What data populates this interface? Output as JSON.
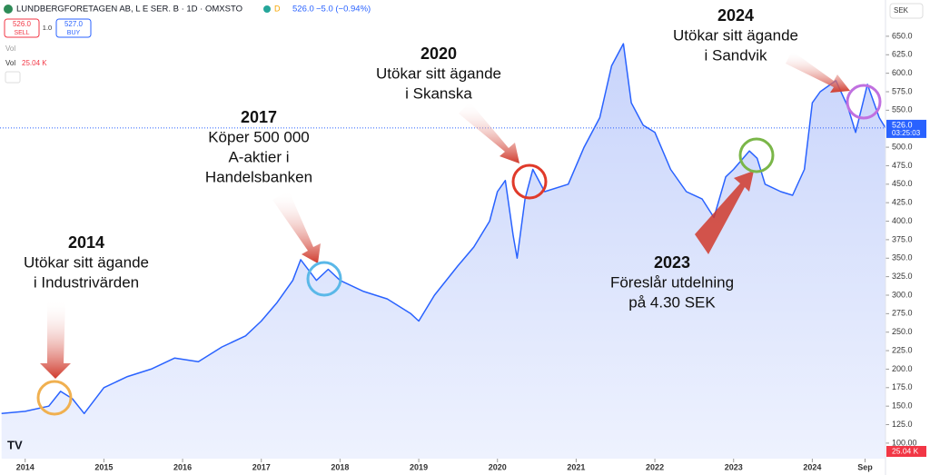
{
  "chart_data": {
    "type": "line",
    "header": {
      "title": "LUNDBERGFORETAGEN AB, L E SER. B · 1D · OMXSTO",
      "badge": "D",
      "price": "526.0",
      "change": "−5.0 (−0.94%)",
      "sell_price": "526.0",
      "sell_label": "SELL",
      "spread": "1.0",
      "buy_price": "527.0",
      "buy_label": "BUY",
      "vol_label": "Vol",
      "vol_title": "Vol",
      "vol_value": "25.04 K"
    },
    "currency": "SEK",
    "price_tag": "526.0",
    "time_tag": "03:25:03",
    "volume_tag": "25.04 K",
    "last_price": 526,
    "xlim": [
      2013.68,
      2024.93
    ],
    "xticks": [
      2014,
      2015,
      2016,
      2017,
      2018,
      2019,
      2020,
      2021,
      2022,
      2023,
      2024,
      {
        "value": 2024.67,
        "label": "Sep"
      }
    ],
    "ylim": [
      79,
      699
    ],
    "yticks": [
      {
        "value": 125,
        "label": "125.0"
      },
      {
        "value": 150,
        "label": "150.0"
      },
      {
        "value": 175,
        "label": "175.0"
      },
      {
        "value": 200,
        "label": "200.0"
      },
      {
        "value": 225,
        "label": "225.0"
      },
      {
        "value": 250,
        "label": "250.0"
      },
      {
        "value": 275,
        "label": "275.0"
      },
      {
        "value": 300,
        "label": "300.0"
      },
      {
        "value": 325,
        "label": "325.0"
      },
      {
        "value": 350,
        "label": "350.0"
      },
      {
        "value": 375,
        "label": "375.0"
      },
      {
        "value": 400,
        "label": "400.0"
      },
      {
        "value": 425,
        "label": "425.0"
      },
      {
        "value": 450,
        "label": "450.0"
      },
      {
        "value": 475,
        "label": "475.0"
      },
      {
        "value": 500,
        "label": "500.0"
      },
      {
        "value": 550,
        "label": "550.0"
      },
      {
        "value": 575,
        "label": "575.0"
      },
      {
        "value": 600,
        "label": "600.0"
      },
      {
        "value": 625,
        "label": "625.0"
      },
      {
        "value": 650,
        "label": "650.0"
      },
      {
        "value": 100,
        "label": "100.00"
      }
    ],
    "series": [
      {
        "color": "#2962ff",
        "x": [
          2013.7,
          2014.0,
          2014.3,
          2014.45,
          2014.6,
          2014.75,
          2015.0,
          2015.3,
          2015.6,
          2015.9,
          2016.2,
          2016.5,
          2016.8,
          2017.0,
          2017.2,
          2017.4,
          2017.5,
          2017.7,
          2017.85,
          2018.0,
          2018.3,
          2018.6,
          2018.9,
          2019.0,
          2019.2,
          2019.5,
          2019.7,
          2019.9,
          2020.0,
          2020.1,
          2020.2,
          2020.25,
          2020.35,
          2020.45,
          2020.6,
          2020.9,
          2021.1,
          2021.3,
          2021.45,
          2021.6,
          2021.7,
          2021.85,
          2022.0,
          2022.2,
          2022.4,
          2022.6,
          2022.75,
          2022.9,
          2023.0,
          2023.2,
          2023.3,
          2023.4,
          2023.6,
          2023.75,
          2023.9,
          2024.0,
          2024.1,
          2024.3,
          2024.45,
          2024.55,
          2024.7,
          2024.85,
          2024.93
        ],
        "values": [
          140,
          143,
          150,
          170,
          160,
          140,
          175,
          190,
          200,
          215,
          210,
          230,
          245,
          265,
          290,
          320,
          348,
          320,
          335,
          320,
          305,
          295,
          275,
          265,
          300,
          340,
          365,
          400,
          440,
          455,
          380,
          350,
          430,
          470,
          440,
          450,
          500,
          540,
          610,
          640,
          560,
          530,
          520,
          470,
          440,
          430,
          405,
          460,
          470,
          495,
          485,
          450,
          440,
          435,
          470,
          560,
          575,
          590,
          555,
          520,
          585,
          540,
          526
        ]
      }
    ],
    "annotations": [
      {
        "year": "2014",
        "lines": [
          "Utökar sitt ägande",
          "i Industrivärden"
        ]
      },
      {
        "year": "2017",
        "lines": [
          "Köper 500 000",
          "A-aktier i",
          "Handelsbanken"
        ]
      },
      {
        "year": "2020",
        "lines": [
          "Utökar sitt ägande",
          "i Skanska"
        ]
      },
      {
        "year": "2024",
        "lines": [
          "Utökar sitt ägande",
          "i Sandvik"
        ]
      },
      {
        "year": "2023",
        "lines": [
          "Föreslår utdelning",
          "på 4.30 SEK"
        ]
      }
    ]
  }
}
